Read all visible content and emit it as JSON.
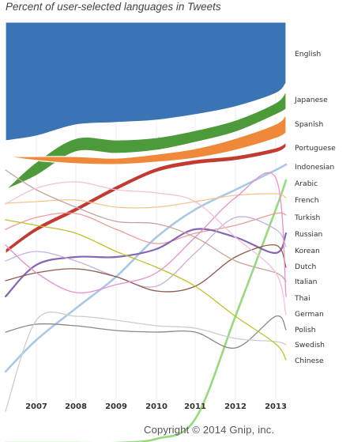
{
  "title": "Percent of user-selected languages in Tweets",
  "copyright": "Copyright © 2014 Gnip, inc.",
  "chart_data": {
    "type": "area",
    "subtype": "bump-stream",
    "title": "Percent of user-selected languages in Tweets",
    "xlabel": "",
    "ylabel": "",
    "x_ticks": [
      "2007",
      "2008",
      "2009",
      "2010",
      "2011",
      "2012",
      "2013"
    ],
    "grid": "vertical",
    "legend": "right",
    "series": [
      {
        "name": "English",
        "color": "#3a74b4"
      },
      {
        "name": "Japanese",
        "color": "#4c9a39"
      },
      {
        "name": "Spanish",
        "color": "#f0883a"
      },
      {
        "name": "Portuguese",
        "color": "#c23a30"
      },
      {
        "name": "Indonesian",
        "color": "#a9c8e6"
      },
      {
        "name": "Arabic",
        "color": "#96da7e"
      },
      {
        "name": "French",
        "color": "#f5c48e"
      },
      {
        "name": "Turkish",
        "color": "#f09a9a"
      },
      {
        "name": "Russian",
        "color": "#8466b5"
      },
      {
        "name": "Korean",
        "color": "#c6b2d9"
      },
      {
        "name": "Dutch",
        "color": "#8e5a4c"
      },
      {
        "name": "Italian",
        "color": "#c4a59c"
      },
      {
        "name": "Thai",
        "color": "#e590c8"
      },
      {
        "name": "German",
        "color": "#f5bfd8"
      },
      {
        "name": "Polish",
        "color": "#888888"
      },
      {
        "name": "Swedish",
        "color": "#cccccc"
      },
      {
        "name": "Chinese",
        "color": "#c0c028"
      }
    ]
  }
}
